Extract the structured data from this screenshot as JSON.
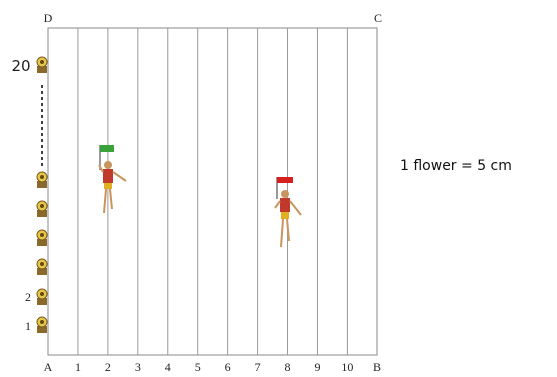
{
  "corners": [
    "A",
    "B",
    "C",
    "D"
  ],
  "line_labels": [
    "1",
    "2",
    "3",
    "4",
    "5",
    "6",
    "7",
    "8",
    "9",
    "10"
  ],
  "flower_labels": {
    "first": "1",
    "second": "2",
    "last": "20"
  },
  "legend": "1 flower = 5 cm"
}
